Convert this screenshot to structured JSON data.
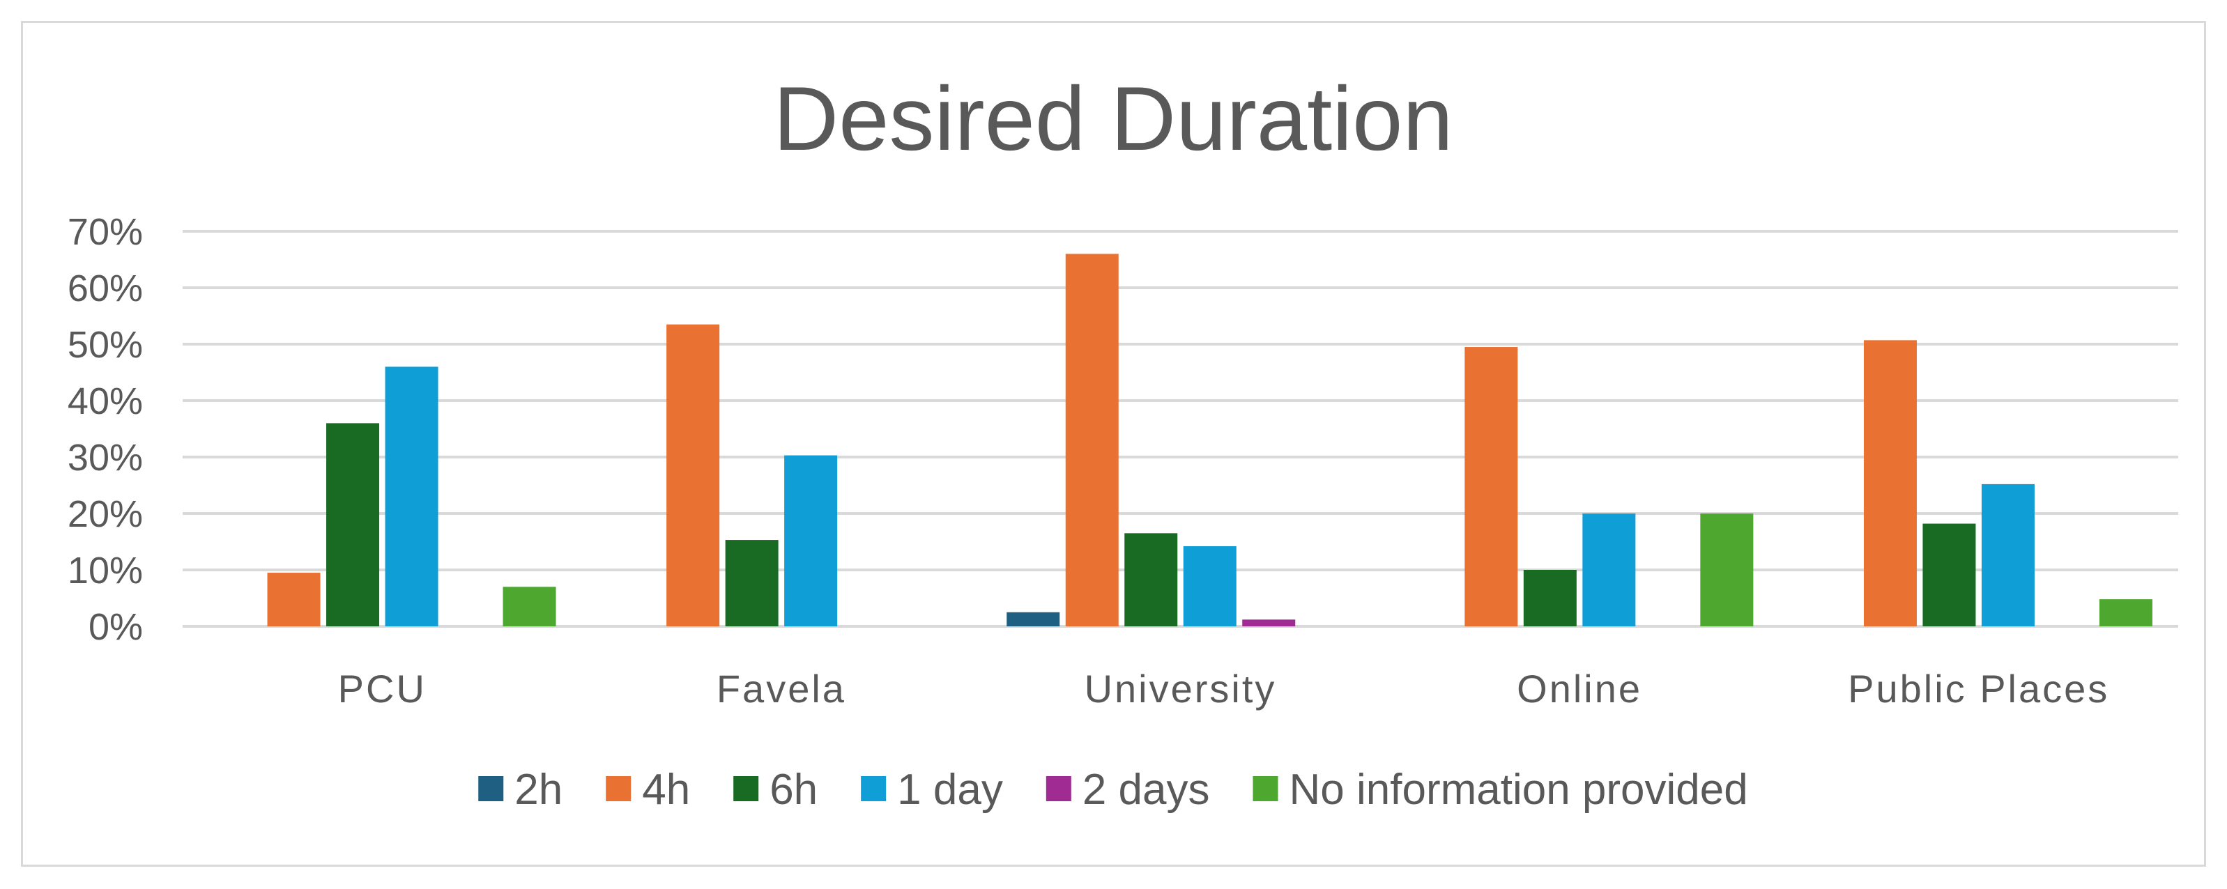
{
  "chart_data": {
    "type": "bar",
    "title": "Desired Duration",
    "xlabel": "",
    "ylabel": "",
    "categories": [
      "PCU",
      "Favela",
      "University",
      "Online",
      "Public Places"
    ],
    "series": [
      {
        "name": "2h",
        "color": "#1f6082",
        "values": [
          0,
          0,
          2.5,
          0,
          0
        ]
      },
      {
        "name": "4h",
        "color": "#e97132",
        "values": [
          9.5,
          53.5,
          66,
          49.5,
          50.7
        ]
      },
      {
        "name": "6h",
        "color": "#196b24",
        "values": [
          36,
          15.3,
          16.5,
          10,
          18.2
        ]
      },
      {
        "name": "1 day",
        "color": "#0f9ed5",
        "values": [
          46,
          30.3,
          14.2,
          20,
          25.2
        ]
      },
      {
        "name": "2 days",
        "color": "#a02b93",
        "values": [
          0,
          0,
          1.2,
          0,
          0
        ]
      },
      {
        "name": "No information provided",
        "color": "#4ea72e",
        "values": [
          7,
          0,
          0,
          20,
          4.8
        ]
      }
    ],
    "ylim": [
      0,
      70
    ],
    "yticks": [
      0,
      10,
      20,
      30,
      40,
      50,
      60,
      70
    ],
    "ytick_labels": [
      "0%",
      "10%",
      "20%",
      "30%",
      "40%",
      "50%",
      "60%",
      "70%"
    ],
    "grid": true,
    "legend_position": "bottom"
  }
}
